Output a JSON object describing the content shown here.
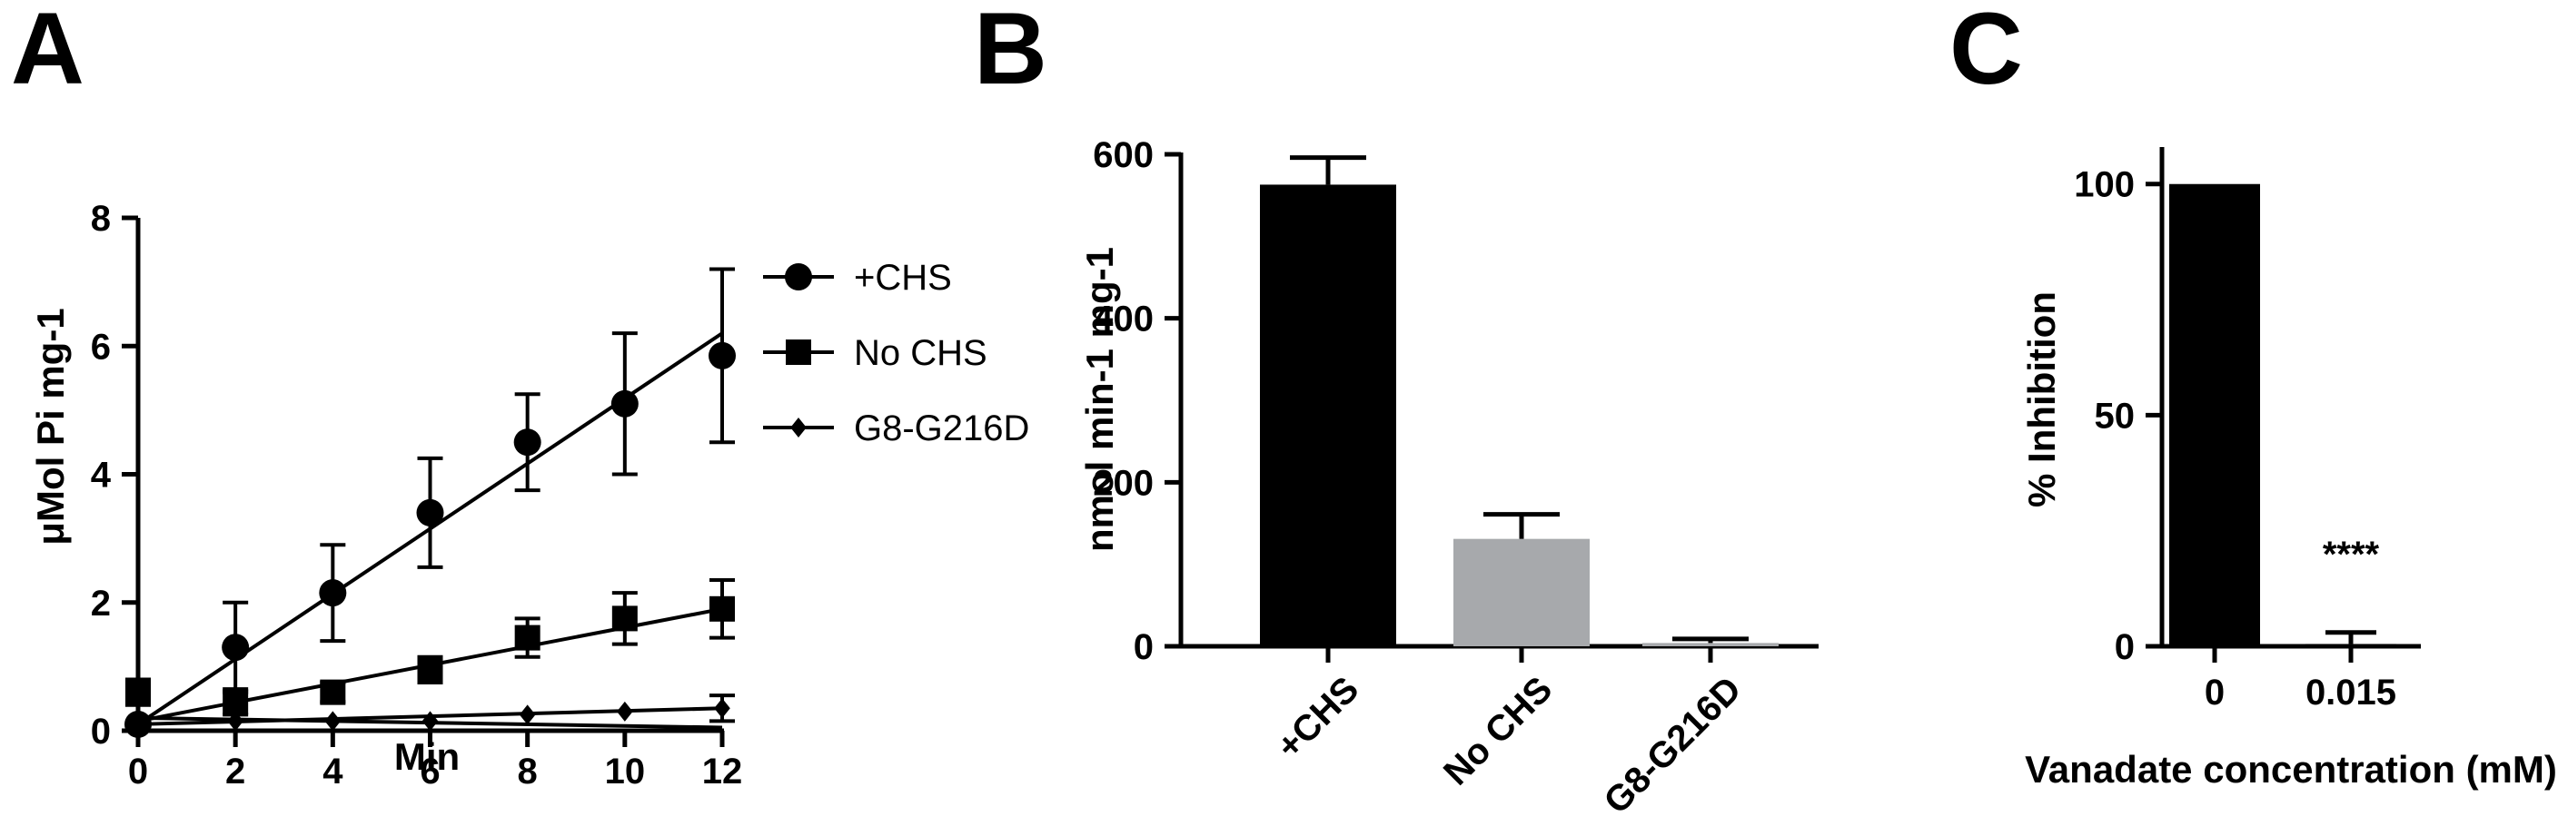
{
  "panels": [
    {
      "letter": "A"
    },
    {
      "letter": "B"
    },
    {
      "letter": "C"
    }
  ],
  "chart_data": [
    {
      "panel": "A",
      "type": "scatter",
      "xlabel": "Min",
      "ylabel": "μMol Pi mg-1",
      "xlim": [
        0,
        12
      ],
      "ylim": [
        0,
        8
      ],
      "x_ticks": [
        0,
        2,
        4,
        6,
        8,
        10,
        12
      ],
      "y_ticks": [
        0,
        2,
        4,
        6,
        8
      ],
      "legend_position": "right",
      "series": [
        {
          "name": "+CHS",
          "marker": "circle",
          "x": [
            0,
            2,
            4,
            6,
            8,
            10,
            12
          ],
          "y": [
            0.1,
            1.3,
            2.15,
            3.4,
            4.5,
            5.1,
            5.85
          ],
          "error": [
            0.05,
            0.7,
            0.75,
            0.85,
            0.75,
            1.1,
            1.35
          ],
          "fit": {
            "x0": 0,
            "y0": 0.1,
            "x1": 12,
            "y1": 6.2
          }
        },
        {
          "name": "No CHS",
          "marker": "square",
          "x": [
            0,
            2,
            4,
            6,
            8,
            10,
            12
          ],
          "y": [
            0.6,
            0.45,
            0.6,
            0.95,
            1.45,
            1.75,
            1.9
          ],
          "error": [
            0.2,
            0.2,
            0.15,
            0.2,
            0.3,
            0.4,
            0.45
          ],
          "fit": {
            "x0": 0,
            "y0": 0.15,
            "x1": 12,
            "y1": 1.9
          }
        },
        {
          "name": "G8-G216D",
          "marker": "diamond",
          "x": [
            0,
            2,
            4,
            6,
            8,
            10,
            12
          ],
          "y": [
            0.1,
            0.15,
            0.15,
            0.15,
            0.25,
            0.3,
            0.35
          ],
          "error": [
            0.05,
            0.05,
            0.05,
            0.05,
            0.05,
            0.05,
            0.2
          ],
          "fit": {
            "x0": 0,
            "y0": 0.1,
            "x1": 12,
            "y1": 0.35
          },
          "fit2": {
            "x0": 0,
            "y0": 0.2,
            "x1": 12,
            "y1": 0.05
          }
        }
      ]
    },
    {
      "panel": "B",
      "type": "bar",
      "xlabel": "",
      "ylabel": "nmol min-1 mg-1",
      "ylim": [
        0,
        600
      ],
      "y_ticks": [
        0,
        200,
        400,
        600
      ],
      "categories": [
        "+CHS",
        "No CHS",
        "G8-G216D"
      ],
      "values": [
        563,
        131,
        4
      ],
      "errors": [
        33,
        30,
        5
      ],
      "colors": [
        "#000000",
        "#a7a9ac",
        "#a7a9ac"
      ]
    },
    {
      "panel": "C",
      "type": "bar",
      "xlabel": "Vanadate concentration (mM)",
      "ylabel": "% Inhibition",
      "ylim": [
        0,
        108
      ],
      "y_ticks": [
        0,
        50,
        100
      ],
      "categories": [
        "0",
        "0.015"
      ],
      "values": [
        100,
        0.5
      ],
      "errors": [
        0,
        2.5
      ],
      "colors": [
        "#000000",
        "#000000"
      ],
      "annotation": {
        "category": "0.015",
        "text": "****",
        "y": 20
      }
    }
  ]
}
